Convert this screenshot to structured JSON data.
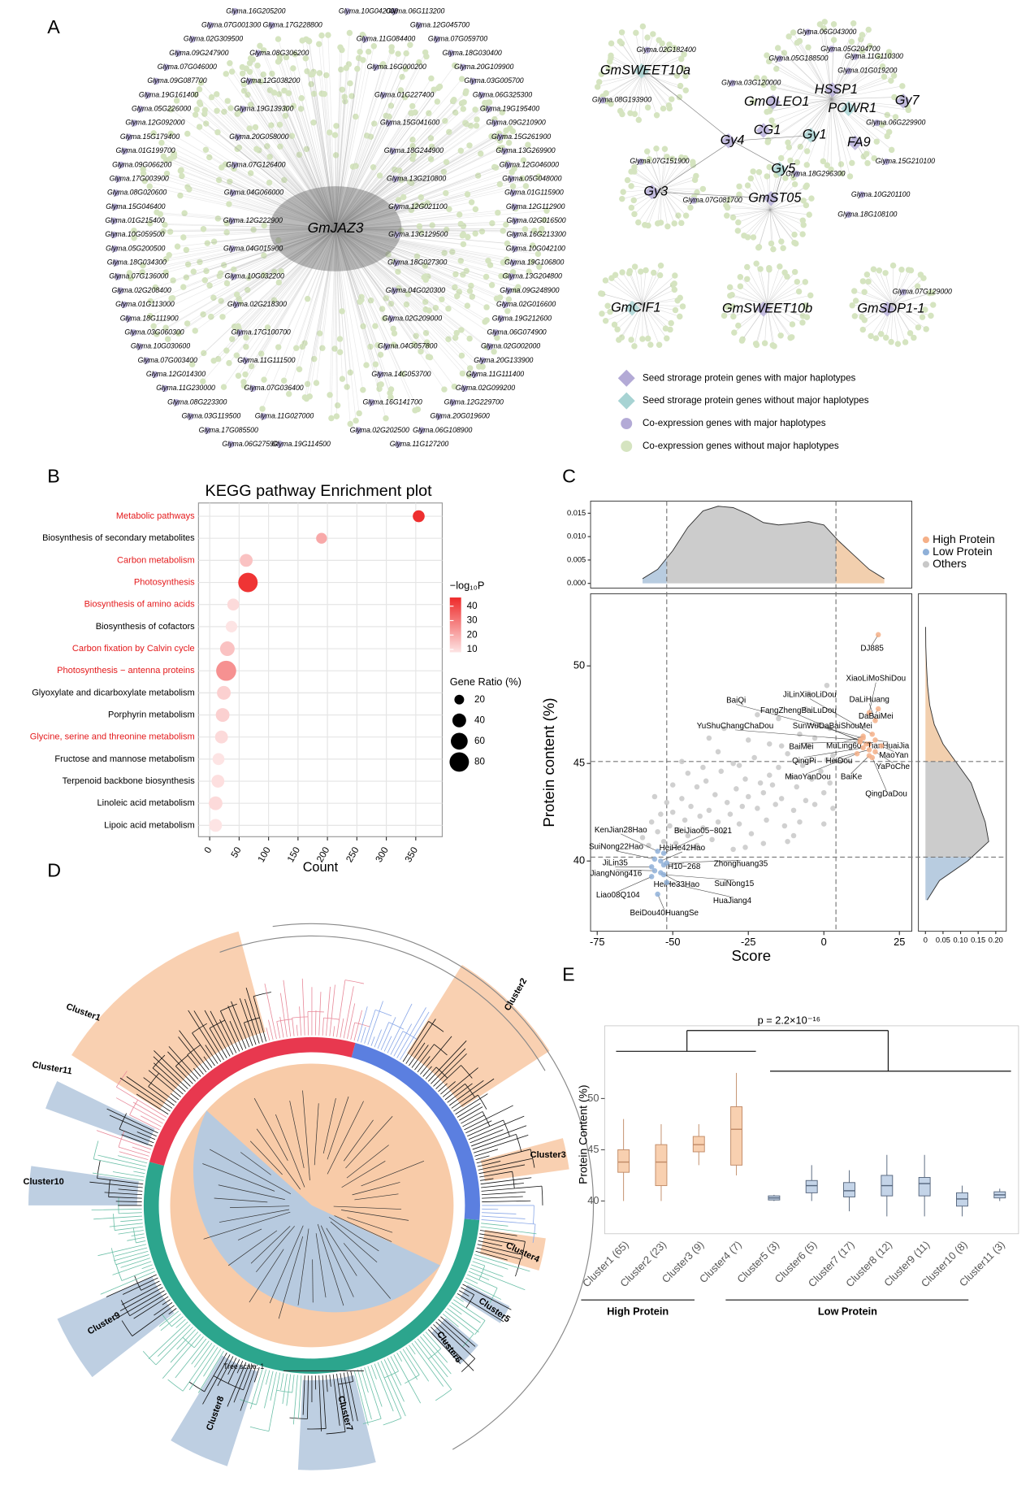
{
  "panels": [
    "A",
    "B",
    "C",
    "D",
    "E"
  ],
  "network": {
    "center": "GmJAZ3",
    "genes": [
      "Glyma.16G205200",
      "Glyma.06G113200",
      "Glyma.10G042000",
      "Glyma.07G001300",
      "Glyma.12G045700",
      "Glyma.17G228800",
      "Glyma.02G309500",
      "Glyma.07G059700",
      "Glyma.11G084400",
      "Glyma.09G247900",
      "Glyma.18G030400",
      "Glyma.08G306200",
      "Glyma.07G046000",
      "Glyma.20G109900",
      "Glyma.16G000200",
      "Glyma.09G087700",
      "Glyma.03G005700",
      "Glyma.12G038200",
      "Glyma.19G161400",
      "Glyma.06G325300",
      "Glyma.01G227400",
      "Glyma.05G226000",
      "Glyma.19G195400",
      "Glyma.19G139300",
      "Glyma.12G092000",
      "Glyma.09G210900",
      "Glyma.15G041600",
      "Glyma.15G179400",
      "Glyma.15G261900",
      "Glyma.20G058000",
      "Glyma.01G199700",
      "Glyma.13G269900",
      "Glyma.18G244900",
      "Glyma.09G066200",
      "Glyma.12G046000",
      "Glyma.07G126400",
      "Glyma.17G003900",
      "Glyma.05G048000",
      "Glyma.13G210800",
      "Glyma.08G020600",
      "Glyma.01G115900",
      "Glyma.04G066000",
      "Glyma.15G046400",
      "Glyma.12G112900",
      "Glyma.12G021100",
      "Glyma.01G215400",
      "Glyma.02G016500",
      "Glyma.12G222900",
      "Glyma.10G059500",
      "Glyma.16G213300",
      "Glyma.13G129500",
      "Glyma.05G200500",
      "Glyma.10G042100",
      "Glyma.04G015900",
      "Glyma.18G034300",
      "Glyma.19G106800",
      "Glyma.18G027300",
      "Glyma.07G136000",
      "Glyma.13G204800",
      "Glyma.10G032200",
      "Glyma.02G208400",
      "Glyma.09G248900",
      "Glyma.04G020300",
      "Glyma.01G113000",
      "Glyma.02G016600",
      "Glyma.02G218300",
      "Glyma.18G111900",
      "Glyma.19G212600",
      "Glyma.02G209000",
      "Glyma.03G060300",
      "Glyma.06G074900",
      "Glyma.17G100700",
      "Glyma.10G030600",
      "Glyma.02G002000",
      "Glyma.04G057800",
      "Glyma.07G003400",
      "Glyma.20G133900",
      "Glyma.11G111500",
      "Glyma.12G014300",
      "Glyma.11G111400",
      "Glyma.14G053700",
      "Glyma.11G230000",
      "Glyma.02G099200",
      "Glyma.07G036400",
      "Glyma.08G223300",
      "Glyma.12G229700",
      "Glyma.16G141700",
      "Glyma.03G119500",
      "Glyma.20G019600",
      "Glyma.11G027000",
      "Glyma.17G085500",
      "Glyma.06G108900",
      "Glyma.02G202500",
      "Glyma.06G275900",
      "Glyma.11G127200",
      "Glyma.19G114500"
    ]
  },
  "network_right": {
    "hubs": [
      "GmSWEET10a",
      "HSSP1",
      "GmOLEO1",
      "POWR1",
      "Gy7",
      "CG1",
      "Gy1",
      "Gy4",
      "FA9",
      "Gy5",
      "Gy3",
      "GmST05",
      "GmCIF1",
      "GmSWEET10b",
      "GmSDP1-1"
    ],
    "genes": [
      "Glyma.02G182400",
      "Glyma.08G193900",
      "Glyma.06G043000",
      "Glyma.05G204700",
      "Glyma.11G110300",
      "Glyma.05G188500",
      "Glyma.01G019200",
      "Glyma.03G120000",
      "Glyma.06G229900",
      "Glyma.07G151900",
      "Glyma.15G210100",
      "Glyma.18G296300",
      "Glyma.07G081700",
      "Glyma.10G201100",
      "Glyma.18G108100",
      "Glyma.07G129000"
    ]
  },
  "legend": [
    "Seed strorage protein genes with major haplotypes",
    "Seed strorage protein genes without major haplotypes",
    "Co-expression genes with major haplotypes",
    "Co-expression genes without major haplotypes"
  ],
  "tree": {
    "clusters": [
      "Cluster1",
      "Cluster2",
      "Cluster3",
      "Cluster4",
      "Cluster5",
      "Cluster6",
      "Cluster7",
      "Cluster8",
      "Cluster9",
      "Cluster10",
      "Cluster11"
    ],
    "scale_label": "Tree scale: 1"
  },
  "chart_data": [
    {
      "type": "dot",
      "title": "KEGG pathway Enrichment plot",
      "categories": [
        "Metabolic pathways",
        "Biosynthesis of secondary metabolites",
        "Carbon metabolism",
        "Photosynthesis",
        "Biosynthesis of amino acids",
        "Biosynthesis of cofactors",
        "Carbon fixation by Calvin cycle",
        "Photosynthesis − antenna proteins",
        "Glyoxylate and dicarboxylate metabolism",
        "Porphyrin metabolism",
        "Glycine, serine and threonine metabolism",
        "Fructose and mannose metabolism",
        "Terpenoid backbone biosynthesis",
        "Linoleic acid metabolism",
        "Lipoic acid metabolism"
      ],
      "label_colors": [
        "#e41a1c",
        "#000000",
        "#e41a1c",
        "#e41a1c",
        "#e41a1c",
        "#000000",
        "#e41a1c",
        "#e41a1c",
        "#000000",
        "#000000",
        "#e41a1c",
        "#000000",
        "#000000",
        "#000000",
        "#000000"
      ],
      "values": [
        355,
        190,
        62,
        65,
        40,
        37,
        30,
        28,
        24,
        22,
        20,
        15,
        14,
        10,
        10
      ],
      "neglog10p": [
        45,
        20,
        15,
        44,
        10,
        8,
        15,
        25,
        12,
        12,
        10,
        8,
        9,
        10,
        8
      ],
      "gene_ratio": [
        30,
        25,
        35,
        80,
        30,
        28,
        45,
        85,
        40,
        40,
        35,
        30,
        35,
        40,
        35
      ],
      "xlabel": "Count",
      "xlim": [
        -19,
        395
      ],
      "xticks": [
        0,
        50,
        100,
        150,
        200,
        250,
        300,
        350
      ],
      "grid": true,
      "color_title": "−log₁₀P",
      "color_lim": [
        8,
        46
      ],
      "color_range": [
        "#fde4e4",
        "#ee2a2a"
      ],
      "color_ticks": [
        10,
        20,
        30,
        40
      ],
      "size_title": "Gene Ratio (%)",
      "size_ticks": [
        20,
        40,
        60,
        80
      ]
    },
    {
      "type": "scatter",
      "xlabel": "Score",
      "ylabel": "Protein content (%)",
      "xlim": [
        -77.2,
        29.1
      ],
      "xticks": [
        -75,
        -50,
        -25,
        0,
        25
      ],
      "ylim": [
        36.4,
        53.7
      ],
      "yticks": [
        40,
        45,
        50
      ],
      "vlines": [
        -52,
        4
      ],
      "hlines": [
        40.2,
        45.1
      ],
      "series": [
        {
          "name": "High Protein",
          "color": "#f5b088",
          "labels": [
            "DJ885",
            "XiaoLiMoShiDou",
            "JiLinXiaoLiDou",
            "DaLiHuang",
            "BaiQi",
            "FangZhengBaiLuDou",
            "DaBaiMei",
            "YuShuChangChaDou",
            "SunWuDaBaiShouMei",
            "MuLing60",
            "TianHuaiJia",
            "BaiMei",
            "MaoYan",
            "QingPi",
            "HeiDou",
            "YaPoChe",
            "MiaoYanDou",
            "BaiKe",
            "QingDaDou"
          ],
          "x": [
            18,
            15,
            16,
            17,
            13,
            14,
            18,
            12,
            15,
            13,
            17,
            12,
            19,
            13,
            15,
            17,
            11,
            15,
            16
          ],
          "values": [
            51.6,
            47.6,
            46.5,
            47.2,
            46.3,
            46.0,
            47.8,
            46.2,
            46.0,
            46.4,
            46.2,
            46.1,
            45.9,
            45.8,
            45.7,
            45.6,
            45.5,
            45.4,
            45.3
          ]
        },
        {
          "name": "Low Protein",
          "color": "#8fb0d8",
          "labels": [
            "KenJian28Hao",
            "BeiJiao05−8021",
            "SuiNong22Hao",
            "HeiHe42Hao",
            "JiLin35",
            "H10−268",
            "Zhonghuang35",
            "JiangNong416",
            "HeiHe33Hao",
            "SuiNong15",
            "Liao08Q104",
            "HuaJiang4",
            "BeiDou40HuangSe"
          ],
          "x": [
            -55,
            -53,
            -56,
            -54,
            -57,
            -53,
            -52,
            -56,
            -54,
            -53,
            -57,
            -52,
            -55
          ],
          "values": [
            40.5,
            40.4,
            40.1,
            40.0,
            39.7,
            39.8,
            39.9,
            39.5,
            39.4,
            39.3,
            39.2,
            38.9,
            38.3
          ]
        },
        {
          "name": "Others",
          "color": "#c8c8c8",
          "x": [
            -60,
            -58,
            -57,
            -55,
            -54,
            -53,
            -52,
            -51,
            -50,
            -49,
            -48,
            -47,
            -46,
            -45,
            -44,
            -43,
            -42,
            -41,
            -40,
            -39,
            -38,
            -37,
            -36,
            -35,
            -34,
            -33,
            -32,
            -31,
            -30,
            -29,
            -28,
            -27,
            -26,
            -25,
            -24,
            -23,
            -22,
            -21,
            -20,
            -19,
            -18,
            -17,
            -16,
            -15,
            -14,
            -13,
            -12,
            -11,
            -10,
            -9,
            -8,
            -7,
            -6,
            -5,
            -4,
            -3,
            -2,
            -1,
            0,
            1,
            2,
            3,
            -45,
            -40,
            -35,
            -30,
            -25,
            -20,
            -15,
            -10,
            -5,
            0,
            2,
            -50,
            -38,
            -28,
            -18,
            -8,
            1,
            -56,
            -42,
            -33,
            -22,
            -12,
            -3,
            3,
            -47,
            -26,
            -14,
            -6
          ],
          "values": [
            41.2,
            40.8,
            42.0,
            41.5,
            42.4,
            41.0,
            43.0,
            41.8,
            42.5,
            40.9,
            41.6,
            43.2,
            42.1,
            41.3,
            42.8,
            40.7,
            43.8,
            42.3,
            41.7,
            44.1,
            42.6,
            41.1,
            43.4,
            42.0,
            44.6,
            41.5,
            43.0,
            42.4,
            45.0,
            43.7,
            41.9,
            42.8,
            44.2,
            43.3,
            41.4,
            45.3,
            42.7,
            44.0,
            43.5,
            42.1,
            46.0,
            43.9,
            42.9,
            44.8,
            43.2,
            41.8,
            45.5,
            44.3,
            42.6,
            43.8,
            46.5,
            44.9,
            43.1,
            45.9,
            44.2,
            42.9,
            47.0,
            44.6,
            43.5,
            45.2,
            44.0,
            42.7,
            44.5,
            44.8,
            45.6,
            40.6,
            46.2,
            40.9,
            47.3,
            41.3,
            48.6,
            41.9,
            46.8,
            43.9,
            46.3,
            44.9,
            44.4,
            42.0,
            49.0,
            43.3,
            40.8,
            46.8,
            47.5,
            41.0,
            46.3,
            45.4,
            45.1,
            40.7,
            45.9,
            47.8
          ]
        }
      ],
      "top_density": {
        "x": [
          -60,
          -55,
          -50,
          -45,
          -40,
          -35,
          -30,
          -25,
          -20,
          -15,
          -10,
          -5,
          0,
          5,
          10,
          15,
          20
        ],
        "values": [
          0.001,
          0.003,
          0.007,
          0.012,
          0.0155,
          0.0165,
          0.0162,
          0.0148,
          0.013,
          0.0125,
          0.0128,
          0.0132,
          0.0125,
          0.009,
          0.006,
          0.003,
          0.001
        ]
      },
      "top_ylim": [
        -0.001,
        0.0176
      ],
      "top_yticks": [
        {
          "value": 0,
          "label": "0.000"
        },
        {
          "value": 0.005,
          "label": "0.005"
        },
        {
          "value": 0.01,
          "label": "0.010"
        },
        {
          "value": 0.015,
          "label": "0.015"
        }
      ],
      "right_density": {
        "y": [
          38,
          39,
          40,
          41,
          42,
          43,
          44,
          45,
          46,
          47,
          48,
          49,
          50,
          51,
          52
        ],
        "values": [
          0.005,
          0.04,
          0.12,
          0.18,
          0.17,
          0.15,
          0.13,
          0.09,
          0.05,
          0.025,
          0.012,
          0.006,
          0.003,
          0.001,
          0.0005
        ]
      },
      "right_xlim": [
        -0.02,
        0.23
      ],
      "right_xticks": [
        0,
        0.05,
        {
          "value": 0.1,
          "label": "0.10"
        },
        0.15,
        {
          "value": 0.2,
          "label": "0.20"
        }
      ]
    },
    {
      "type": "box",
      "ylabel": "Protein Content (%)",
      "categories": [
        "Cluster1 (65)",
        "Cluster2 (23)",
        "Cluster3 (9)",
        "Cluster4 (7)",
        "Cluster5 (3)",
        "Cluster6 (5)",
        "Cluster7 (17)",
        "Cluster8 (12)",
        "Cluster9 (11)",
        "Cluster10 (8)",
        "Cluster11 (3)"
      ],
      "colors": [
        "#f8d0b0",
        "#f8d0b0",
        "#f8d0b0",
        "#f8d0b0",
        "#c4d4e8",
        "#c4d4e8",
        "#c4d4e8",
        "#c4d4e8",
        "#c4d4e8",
        "#c4d4e8",
        "#c4d4e8"
      ],
      "min": [
        40,
        40,
        43.5,
        42.5,
        40,
        40,
        39,
        38.5,
        38.5,
        38.5,
        40
      ],
      "q1": [
        42.8,
        41.5,
        44.8,
        43.5,
        40.1,
        40.8,
        40.4,
        40.5,
        40.5,
        39.5,
        40.3
      ],
      "median": [
        43.8,
        43.8,
        45.5,
        47,
        40.3,
        41.5,
        41.0,
        41.5,
        41.7,
        40.2,
        40.6
      ],
      "q3": [
        45.0,
        45.5,
        46.3,
        49.2,
        40.5,
        42.0,
        41.8,
        42.5,
        42.3,
        40.8,
        40.9
      ],
      "max": [
        48,
        47.5,
        47.5,
        52.5,
        40.6,
        43.5,
        43,
        44.5,
        44.5,
        41.5,
        41.2
      ],
      "ylim": [
        36.8,
        57.1
      ],
      "yticks": [
        40,
        45,
        50
      ],
      "annotation": "p = 2.2×10⁻¹⁶",
      "groups": [
        "High Protein",
        "Low Protein"
      ]
    }
  ]
}
